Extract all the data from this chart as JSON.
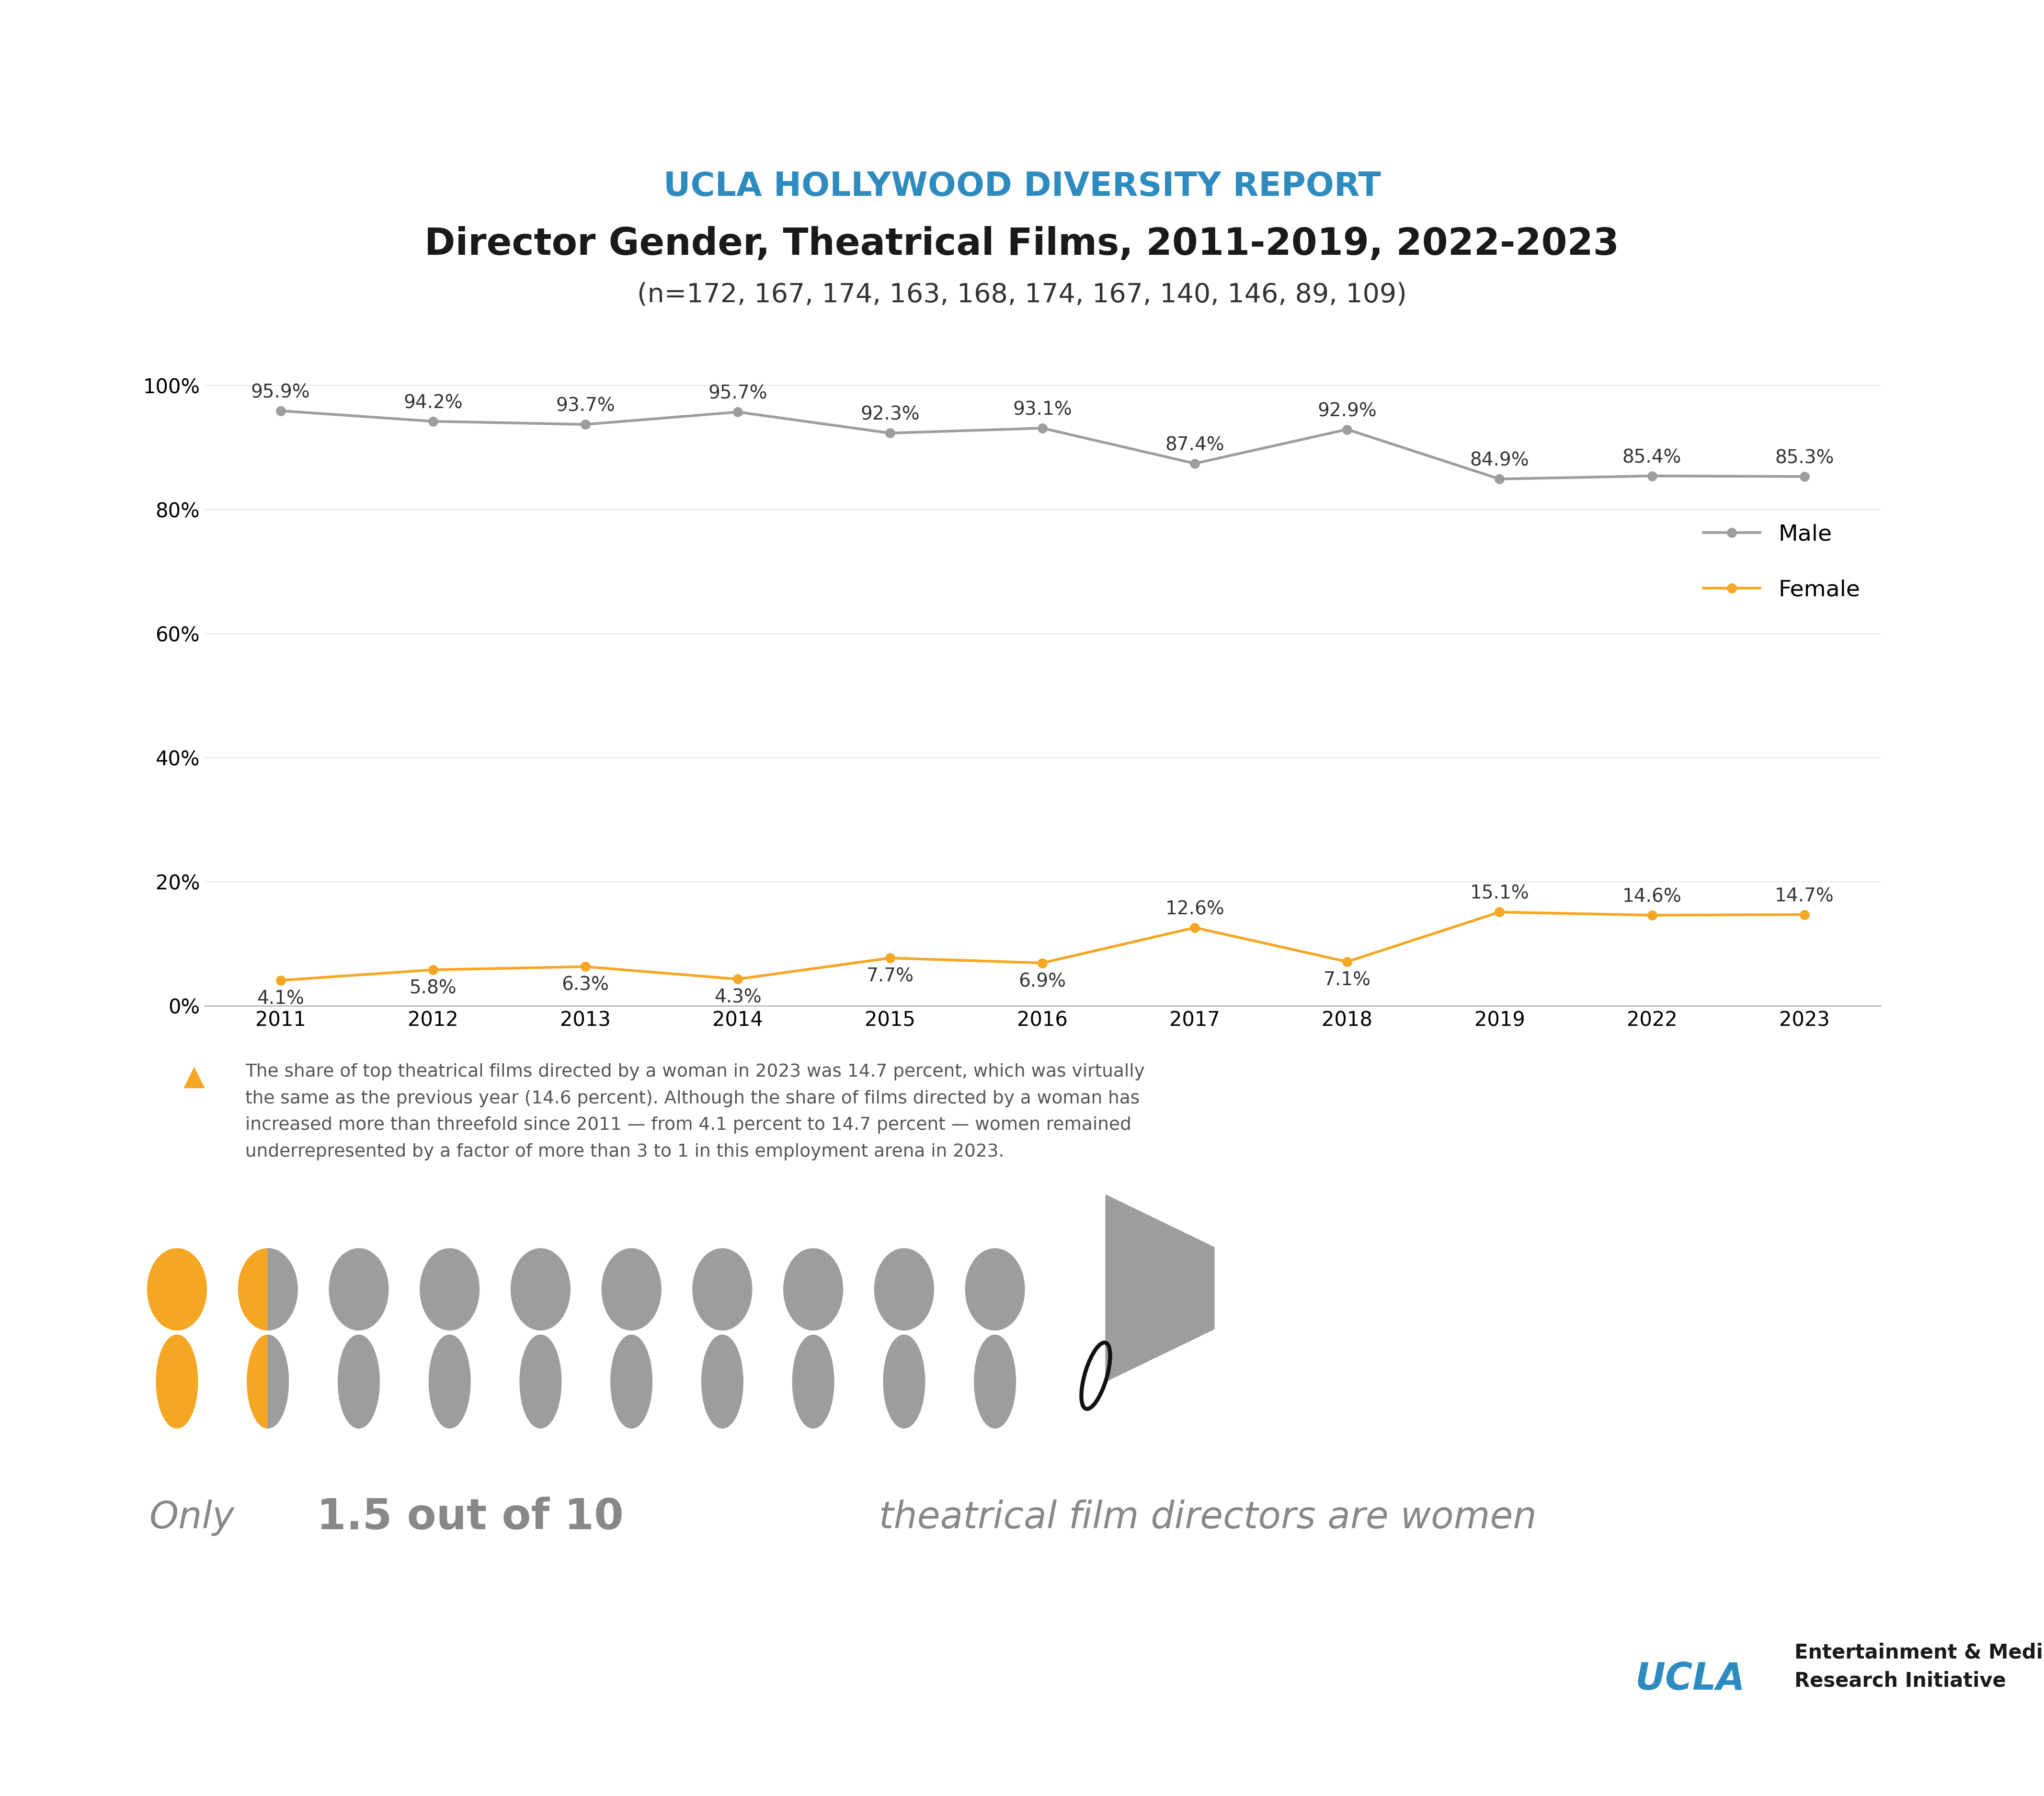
{
  "title_top": "UCLA HOLLYWOOD DIVERSITY REPORT",
  "title_main": "Director Gender, Theatrical Films, 2011-2019, 2022-2023",
  "subtitle": "(n=172, 167, 174, 163, 168, 174, 167, 140, 146, 89, 109)",
  "years": [
    2011,
    2012,
    2013,
    2014,
    2015,
    2016,
    2017,
    2018,
    2019,
    2022,
    2023
  ],
  "male_values": [
    95.9,
    94.2,
    93.7,
    95.7,
    92.3,
    93.1,
    87.4,
    92.9,
    84.9,
    85.4,
    85.3
  ],
  "female_values": [
    4.1,
    5.8,
    6.3,
    4.3,
    7.7,
    6.9,
    12.6,
    7.1,
    15.1,
    14.6,
    14.7
  ],
  "male_color": "#9d9d9d",
  "female_color": "#F5A623",
  "title_top_color": "#2E8BC0",
  "title_main_color": "#1a1a1a",
  "subtitle_color": "#333333",
  "annotation_text": "The share of top theatrical films directed by a woman in 2023 was 14.7 percent, which was virtually\nthe same as the previous year (14.6 percent). Although the share of films directed by a woman has\nincreased more than threefold since 2011 — from 4.1 percent to 14.7 percent — women remained\nunderrepresented by a factor of more than 3 to 1 in this employment arena in 2023.",
  "background_color": "#ffffff",
  "male_label": "Male",
  "female_label": "Female",
  "bottom_only": "Only ",
  "bottom_bold": "1.5 out of 10",
  "bottom_rest": " theatrical film directors are women",
  "ucla_color": "#2E8BC0",
  "gray_text": "#888888"
}
